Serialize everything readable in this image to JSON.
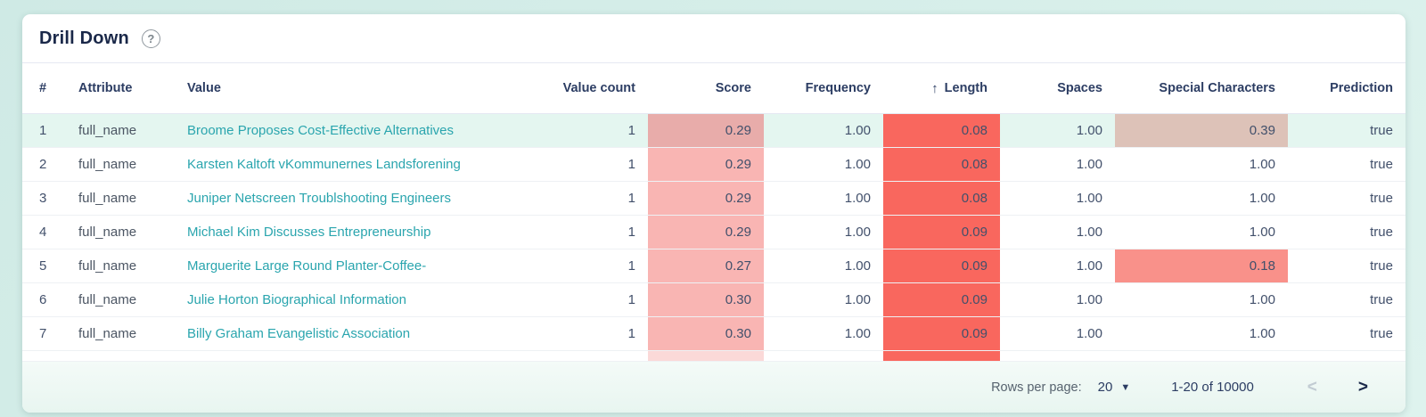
{
  "colors": {
    "page_bg_1": "#cfeae5",
    "page_bg_2": "#def3ee",
    "card_bg": "#ffffff",
    "title_text": "#1a2849",
    "header_text": "#2c3d63",
    "body_text": "#42506b",
    "muted_text": "#57636f",
    "link_teal": "#2aa5ae",
    "row_highlight": "#e4f6f0",
    "divider": "#e5e8f2",
    "row_divider": "#eef1f4",
    "heat_score": "#f9b5b3",
    "heat_score_muted": "#e8acaa",
    "heat_score_faint": "#fbd9d8",
    "heat_length": "#f9675e",
    "heat_special_dusty": "#ddc2b8",
    "heat_special_salmon": "#f9918a",
    "footer_bg_1": "#f4fbf8",
    "footer_bg_2": "#e8f5f0",
    "disabled_icon": "#c2ccd3"
  },
  "header": {
    "title": "Drill Down",
    "help_icon": "?"
  },
  "table": {
    "columns": {
      "index": "#",
      "attribute": "Attribute",
      "value": "Value",
      "value_count": "Value count",
      "score": "Score",
      "frequency": "Frequency",
      "length": "Length",
      "spaces": "Spaces",
      "special_characters": "Special Characters",
      "prediction": "Prediction"
    },
    "sort": {
      "column": "Length",
      "direction": "ascending",
      "icon": "↑"
    },
    "rows": [
      {
        "index": "1",
        "attribute": "full_name",
        "value": "Broome Proposes Cost-Effective Alternatives",
        "value_count": "1",
        "score": "0.29",
        "frequency": "1.00",
        "length": "0.08",
        "spaces": "1.00",
        "special_characters": "0.39",
        "prediction": "true"
      },
      {
        "index": "2",
        "attribute": "full_name",
        "value": "Karsten Kaltoft vKommunernes Landsforening",
        "value_count": "1",
        "score": "0.29",
        "frequency": "1.00",
        "length": "0.08",
        "spaces": "1.00",
        "special_characters": "1.00",
        "prediction": "true"
      },
      {
        "index": "3",
        "attribute": "full_name",
        "value": "Juniper Netscreen Troublshooting Engineers",
        "value_count": "1",
        "score": "0.29",
        "frequency": "1.00",
        "length": "0.08",
        "spaces": "1.00",
        "special_characters": "1.00",
        "prediction": "true"
      },
      {
        "index": "4",
        "attribute": "full_name",
        "value": "Michael Kim Discusses Entrepreneurship",
        "value_count": "1",
        "score": "0.29",
        "frequency": "1.00",
        "length": "0.09",
        "spaces": "1.00",
        "special_characters": "1.00",
        "prediction": "true"
      },
      {
        "index": "5",
        "attribute": "full_name",
        "value": "Marguerite Large Round Planter-Coffee-",
        "value_count": "1",
        "score": "0.27",
        "frequency": "1.00",
        "length": "0.09",
        "spaces": "1.00",
        "special_characters": "0.18",
        "prediction": "true"
      },
      {
        "index": "6",
        "attribute": "full_name",
        "value": "Julie Horton Biographical Information",
        "value_count": "1",
        "score": "0.30",
        "frequency": "1.00",
        "length": "0.09",
        "spaces": "1.00",
        "special_characters": "1.00",
        "prediction": "true"
      },
      {
        "index": "7",
        "attribute": "full_name",
        "value": "Billy Graham Evangelistic Association",
        "value_count": "1",
        "score": "0.30",
        "frequency": "1.00",
        "length": "0.09",
        "spaces": "1.00",
        "special_characters": "1.00",
        "prediction": "true"
      }
    ]
  },
  "pagination": {
    "rows_per_page_label": "Rows per page:",
    "rows_per_page_value": "20",
    "dropdown_icon": "▼",
    "range_label": "1-20 of 10000",
    "prev_icon": "<",
    "next_icon": ">"
  }
}
